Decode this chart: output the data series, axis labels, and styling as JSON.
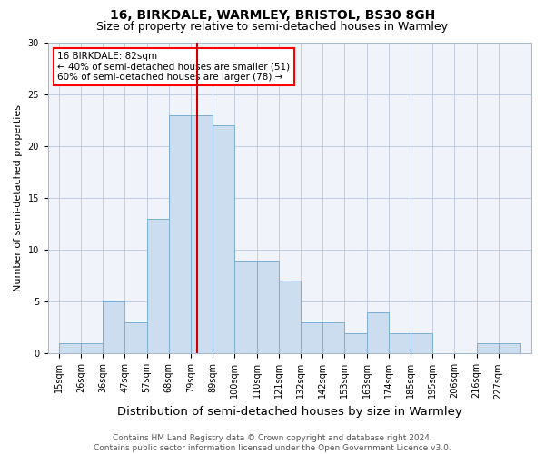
{
  "title": "16, BIRKDALE, WARMLEY, BRISTOL, BS30 8GH",
  "subtitle": "Size of property relative to semi-detached houses in Warmley",
  "xlabel": "Distribution of semi-detached houses by size in Warmley",
  "ylabel": "Number of semi-detached properties",
  "bin_labels": [
    "15sqm",
    "26sqm",
    "36sqm",
    "47sqm",
    "57sqm",
    "68sqm",
    "79sqm",
    "89sqm",
    "100sqm",
    "110sqm",
    "121sqm",
    "132sqm",
    "142sqm",
    "153sqm",
    "163sqm",
    "174sqm",
    "185sqm",
    "195sqm",
    "206sqm",
    "216sqm",
    "227sqm"
  ],
  "counts": [
    1,
    1,
    5,
    3,
    13,
    23,
    23,
    22,
    9,
    9,
    7,
    3,
    3,
    2,
    4,
    2,
    2,
    0,
    0,
    1,
    1
  ],
  "property_value_bin": 6,
  "annotation_title": "16 BIRKDALE: 82sqm",
  "annotation_line1": "← 40% of semi-detached houses are smaller (51)",
  "annotation_line2": "60% of semi-detached houses are larger (78) →",
  "bar_color": "#ccddf0",
  "bar_edge_color": "#7bafd4",
  "vline_color": "#cc0000",
  "ylim": [
    0,
    30
  ],
  "yticks": [
    0,
    5,
    10,
    15,
    20,
    25,
    30
  ],
  "footer": "Contains HM Land Registry data © Crown copyright and database right 2024.\nContains public sector information licensed under the Open Government Licence v3.0.",
  "title_fontsize": 10,
  "subtitle_fontsize": 9,
  "xlabel_fontsize": 9.5,
  "ylabel_fontsize": 8,
  "tick_fontsize": 7,
  "footer_fontsize": 6.5,
  "bg_color": "#f0f4fa"
}
